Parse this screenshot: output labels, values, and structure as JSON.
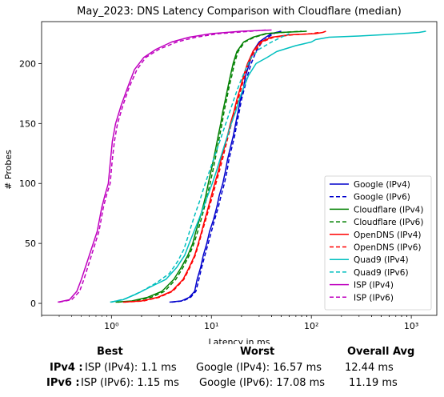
{
  "chart_data": {
    "type": "line",
    "title": "May_2023: DNS Latency Comparison with Cloudflare (median)",
    "xlabel": "Latency in ms",
    "ylabel": "# Probes",
    "x_scale": "log",
    "xlim": [
      0.2,
      1800
    ],
    "ylim": [
      -10,
      235
    ],
    "xticks": [
      {
        "value": 1,
        "label": "10⁰"
      },
      {
        "value": 10,
        "label": "10¹"
      },
      {
        "value": 100,
        "label": "10²"
      },
      {
        "value": 1000,
        "label": "10³"
      }
    ],
    "yticks": [
      0,
      50,
      100,
      150,
      200
    ],
    "legend_position": "lower-right",
    "grid": false,
    "series": [
      {
        "name": "Google (IPv4)",
        "color": "#0000cc",
        "style": "solid",
        "points": [
          [
            3.8,
            1
          ],
          [
            5,
            2
          ],
          [
            6,
            5
          ],
          [
            6.8,
            10
          ],
          [
            7.2,
            20
          ],
          [
            7.8,
            30
          ],
          [
            8.3,
            40
          ],
          [
            9,
            50
          ],
          [
            9.6,
            60
          ],
          [
            10.5,
            70
          ],
          [
            11.3,
            80
          ],
          [
            12,
            90
          ],
          [
            13,
            100
          ],
          [
            13.8,
            110
          ],
          [
            14.5,
            120
          ],
          [
            15.5,
            130
          ],
          [
            16.6,
            140
          ],
          [
            17.5,
            150
          ],
          [
            18.5,
            160
          ],
          [
            19.5,
            170
          ],
          [
            21,
            180
          ],
          [
            22,
            190
          ],
          [
            24,
            200
          ],
          [
            26,
            210
          ],
          [
            30,
            218
          ],
          [
            35,
            222
          ],
          [
            40,
            225
          ],
          [
            50,
            227
          ]
        ]
      },
      {
        "name": "Google (IPv6)",
        "color": "#0000cc",
        "style": "dashed",
        "points": [
          [
            4,
            1
          ],
          [
            5.2,
            2
          ],
          [
            6.2,
            5
          ],
          [
            7,
            10
          ],
          [
            7.5,
            20
          ],
          [
            8,
            30
          ],
          [
            8.6,
            40
          ],
          [
            9.3,
            50
          ],
          [
            10,
            60
          ],
          [
            10.8,
            70
          ],
          [
            11.7,
            80
          ],
          [
            12.5,
            90
          ],
          [
            13.5,
            100
          ],
          [
            14.3,
            110
          ],
          [
            15,
            120
          ],
          [
            16,
            130
          ],
          [
            17.1,
            140
          ],
          [
            18,
            150
          ],
          [
            19,
            160
          ],
          [
            20,
            170
          ],
          [
            21.5,
            180
          ],
          [
            23,
            190
          ],
          [
            25,
            200
          ],
          [
            28,
            210
          ],
          [
            32,
            218
          ],
          [
            37,
            222
          ],
          [
            42,
            225
          ],
          [
            48,
            227
          ]
        ]
      },
      {
        "name": "Cloudflare (IPv4)",
        "color": "#008000",
        "style": "solid",
        "points": [
          [
            1.1,
            1
          ],
          [
            1.6,
            2
          ],
          [
            2.3,
            5
          ],
          [
            3.2,
            10
          ],
          [
            4.2,
            20
          ],
          [
            5,
            30
          ],
          [
            5.8,
            40
          ],
          [
            6.5,
            50
          ],
          [
            7,
            60
          ],
          [
            7.6,
            70
          ],
          [
            8.2,
            80
          ],
          [
            8.8,
            90
          ],
          [
            9.3,
            100
          ],
          [
            9.9,
            110
          ],
          [
            10.5,
            120
          ],
          [
            11.1,
            130
          ],
          [
            11.7,
            140
          ],
          [
            12.4,
            150
          ],
          [
            13,
            160
          ],
          [
            13.8,
            170
          ],
          [
            14.6,
            180
          ],
          [
            15.5,
            190
          ],
          [
            16.5,
            200
          ],
          [
            18,
            210
          ],
          [
            21,
            218
          ],
          [
            26,
            222
          ],
          [
            35,
            225
          ],
          [
            50,
            226
          ],
          [
            90,
            227
          ]
        ]
      },
      {
        "name": "Cloudflare (IPv6)",
        "color": "#008000",
        "style": "dashed",
        "points": [
          [
            1.15,
            1
          ],
          [
            1.7,
            2
          ],
          [
            2.5,
            5
          ],
          [
            3.4,
            10
          ],
          [
            4.4,
            20
          ],
          [
            5.2,
            30
          ],
          [
            6,
            40
          ],
          [
            6.7,
            50
          ],
          [
            7.3,
            60
          ],
          [
            7.9,
            70
          ],
          [
            8.5,
            80
          ],
          [
            9.1,
            90
          ],
          [
            9.7,
            100
          ],
          [
            10.3,
            110
          ],
          [
            10.9,
            120
          ],
          [
            11.5,
            130
          ],
          [
            12.1,
            140
          ],
          [
            12.8,
            150
          ],
          [
            13.4,
            160
          ],
          [
            14.2,
            170
          ],
          [
            15,
            180
          ],
          [
            16,
            190
          ],
          [
            17,
            200
          ],
          [
            18.5,
            210
          ],
          [
            21.5,
            218
          ],
          [
            27,
            222
          ],
          [
            36,
            225
          ],
          [
            52,
            226
          ],
          [
            80,
            227
          ]
        ]
      },
      {
        "name": "OpenDNS (IPv4)",
        "color": "#ff0000",
        "style": "solid",
        "points": [
          [
            1.3,
            1
          ],
          [
            2,
            2
          ],
          [
            2.9,
            5
          ],
          [
            4,
            10
          ],
          [
            5.2,
            20
          ],
          [
            6,
            30
          ],
          [
            6.8,
            40
          ],
          [
            7.4,
            50
          ],
          [
            8,
            60
          ],
          [
            8.6,
            70
          ],
          [
            9.3,
            80
          ],
          [
            10,
            90
          ],
          [
            10.8,
            100
          ],
          [
            11.7,
            110
          ],
          [
            12.5,
            120
          ],
          [
            13.5,
            130
          ],
          [
            14.5,
            140
          ],
          [
            15.5,
            150
          ],
          [
            16.8,
            160
          ],
          [
            18,
            170
          ],
          [
            19.5,
            180
          ],
          [
            21,
            190
          ],
          [
            23,
            200
          ],
          [
            26,
            210
          ],
          [
            31,
            218
          ],
          [
            40,
            222
          ],
          [
            60,
            224
          ],
          [
            110,
            225
          ],
          [
            130,
            226
          ],
          [
            140,
            227
          ]
        ]
      },
      {
        "name": "OpenDNS (IPv6)",
        "color": "#ff0000",
        "style": "dashed",
        "points": [
          [
            1.35,
            1
          ],
          [
            2.1,
            2
          ],
          [
            3,
            5
          ],
          [
            4.1,
            10
          ],
          [
            5.3,
            20
          ],
          [
            6.1,
            30
          ],
          [
            6.9,
            40
          ],
          [
            7.5,
            50
          ],
          [
            8.1,
            60
          ],
          [
            8.8,
            70
          ],
          [
            9.5,
            80
          ],
          [
            10.3,
            90
          ],
          [
            11.1,
            100
          ],
          [
            12,
            110
          ],
          [
            12.9,
            120
          ],
          [
            13.8,
            130
          ],
          [
            14.8,
            140
          ],
          [
            15.9,
            150
          ],
          [
            17.2,
            160
          ],
          [
            18.5,
            170
          ],
          [
            20,
            180
          ],
          [
            21.5,
            190
          ],
          [
            23.5,
            200
          ],
          [
            27,
            210
          ],
          [
            32,
            218
          ],
          [
            42,
            222
          ],
          [
            65,
            224
          ],
          [
            100,
            225
          ],
          [
            120,
            226
          ]
        ]
      },
      {
        "name": "Quad9 (IPv4)",
        "color": "#00bfbf",
        "style": "solid",
        "points": [
          [
            0.97,
            1
          ],
          [
            1.3,
            3
          ],
          [
            1.8,
            8
          ],
          [
            2.5,
            14
          ],
          [
            3.5,
            20
          ],
          [
            4.5,
            30
          ],
          [
            5.4,
            40
          ],
          [
            6,
            50
          ],
          [
            6.7,
            60
          ],
          [
            7.5,
            70
          ],
          [
            8.3,
            80
          ],
          [
            9.2,
            90
          ],
          [
            10.2,
            100
          ],
          [
            11.2,
            110
          ],
          [
            12.2,
            120
          ],
          [
            13.3,
            130
          ],
          [
            14.5,
            140
          ],
          [
            15.8,
            150
          ],
          [
            17.5,
            160
          ],
          [
            19,
            170
          ],
          [
            21,
            180
          ],
          [
            23.5,
            190
          ],
          [
            28,
            200
          ],
          [
            36,
            205
          ],
          [
            45,
            210
          ],
          [
            70,
            215
          ],
          [
            100,
            218
          ],
          [
            110,
            220
          ],
          [
            150,
            222
          ],
          [
            300,
            223
          ],
          [
            500,
            224
          ],
          [
            800,
            225
          ],
          [
            1200,
            226
          ],
          [
            1400,
            227
          ]
        ]
      },
      {
        "name": "Quad9 (IPv6)",
        "color": "#00bfbf",
        "style": "dashed",
        "points": [
          [
            1.0,
            1
          ],
          [
            1.4,
            4
          ],
          [
            2.0,
            10
          ],
          [
            2.8,
            17
          ],
          [
            3.8,
            25
          ],
          [
            4.6,
            35
          ],
          [
            5.3,
            45
          ],
          [
            5.8,
            55
          ],
          [
            6.3,
            65
          ],
          [
            6.9,
            75
          ],
          [
            7.6,
            85
          ],
          [
            8.3,
            95
          ],
          [
            9.1,
            105
          ],
          [
            10,
            115
          ],
          [
            11,
            125
          ],
          [
            12.1,
            135
          ],
          [
            13.3,
            145
          ],
          [
            14.6,
            155
          ],
          [
            16,
            165
          ],
          [
            17.6,
            175
          ],
          [
            19.5,
            185
          ],
          [
            22,
            195
          ],
          [
            25,
            205
          ],
          [
            30,
            212
          ],
          [
            40,
            218
          ],
          [
            50,
            222
          ],
          [
            60,
            225
          ]
        ]
      },
      {
        "name": "ISP (IPv4)",
        "color": "#bf00bf",
        "style": "solid",
        "points": [
          [
            0.29,
            1
          ],
          [
            0.38,
            3
          ],
          [
            0.45,
            10
          ],
          [
            0.5,
            20
          ],
          [
            0.6,
            40
          ],
          [
            0.72,
            60
          ],
          [
            0.8,
            80
          ],
          [
            0.86,
            90
          ],
          [
            0.93,
            100
          ],
          [
            0.98,
            120
          ],
          [
            1.02,
            135
          ],
          [
            1.1,
            150
          ],
          [
            1.25,
            165
          ],
          [
            1.45,
            180
          ],
          [
            1.7,
            195
          ],
          [
            2.1,
            205
          ],
          [
            2.8,
            212
          ],
          [
            4,
            218
          ],
          [
            6,
            222
          ],
          [
            10,
            225
          ],
          [
            20,
            227
          ],
          [
            40,
            228
          ]
        ]
      },
      {
        "name": "ISP (IPv6)",
        "color": "#bf00bf",
        "style": "dashed",
        "points": [
          [
            0.3,
            1
          ],
          [
            0.4,
            3
          ],
          [
            0.48,
            10
          ],
          [
            0.53,
            20
          ],
          [
            0.63,
            40
          ],
          [
            0.75,
            60
          ],
          [
            0.83,
            80
          ],
          [
            0.89,
            90
          ],
          [
            0.97,
            100
          ],
          [
            1.02,
            120
          ],
          [
            1.07,
            135
          ],
          [
            1.15,
            150
          ],
          [
            1.3,
            165
          ],
          [
            1.5,
            180
          ],
          [
            1.8,
            195
          ],
          [
            2.2,
            205
          ],
          [
            3,
            212
          ],
          [
            4.5,
            218
          ],
          [
            7,
            222
          ],
          [
            12,
            225
          ],
          [
            25,
            227
          ],
          [
            35,
            228
          ]
        ]
      }
    ]
  },
  "summary": {
    "headers": {
      "best": "Best",
      "worst": "Worst",
      "avg": "Overall Avg"
    },
    "rows": [
      {
        "label": "IPv4 :",
        "best": "ISP (IPv4): 1.1 ms",
        "worst": "Google (IPv4): 16.57 ms",
        "avg": "12.44 ms"
      },
      {
        "label": "IPv6 :",
        "best": "ISP (IPv6): 1.15 ms",
        "worst": "Google (IPv6): 17.08 ms",
        "avg": "11.19 ms"
      }
    ]
  }
}
